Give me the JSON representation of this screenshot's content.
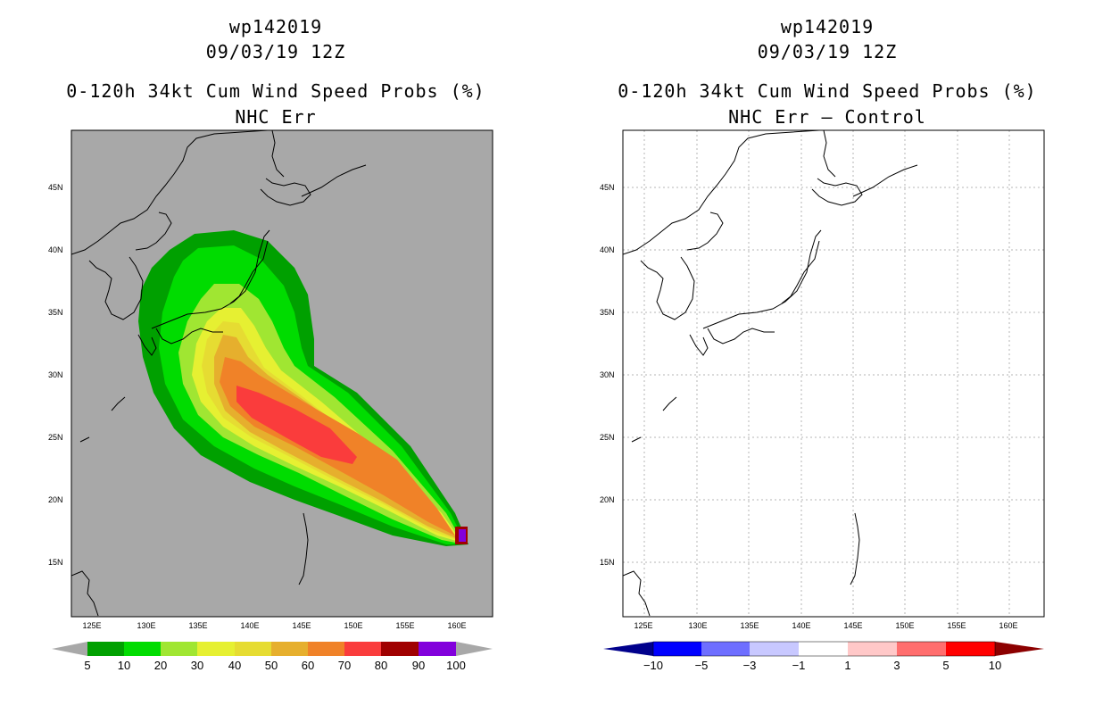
{
  "left_panel": {
    "title_lines": [
      "wp142019",
      "09/03/19 12Z",
      "0-120h 34kt Cum Wind Speed Probs (%)",
      "NHC Err"
    ],
    "map_background": "#a8a8a8",
    "colorbar": {
      "labels": [
        "5",
        "10",
        "20",
        "30",
        "40",
        "50",
        "60",
        "70",
        "80",
        "90",
        "100"
      ],
      "colors": [
        "#00a000",
        "#00dc00",
        "#a0e632",
        "#e6f032",
        "#e6dc32",
        "#e6af2d",
        "#f08228",
        "#fa3c3c",
        "#a00000",
        "#8200dc"
      ]
    }
  },
  "right_panel": {
    "title_lines": [
      "wp142019",
      "09/03/19 12Z",
      "0-120h 34kt Cum Wind Speed Probs (%)",
      "NHC Err – Control"
    ],
    "map_background": "#ffffff",
    "colorbar": {
      "labels": [
        "−10",
        "−5",
        "−3",
        "−1",
        "1",
        "3",
        "5",
        "10"
      ],
      "colors": [
        "#00008c",
        "#0000ff",
        "#6e6eff",
        "#c8c8ff",
        "#ffffff",
        "#ffc8c8",
        "#ff6e6e",
        "#ff0000",
        "#8c0000"
      ]
    }
  },
  "axes": {
    "lon_labels": [
      "125E",
      "130E",
      "135E",
      "140E",
      "145E",
      "150E",
      "155E",
      "160E"
    ],
    "lat_labels": [
      "15N",
      "20N",
      "25N",
      "30N",
      "35N",
      "40N",
      "45N"
    ]
  }
}
